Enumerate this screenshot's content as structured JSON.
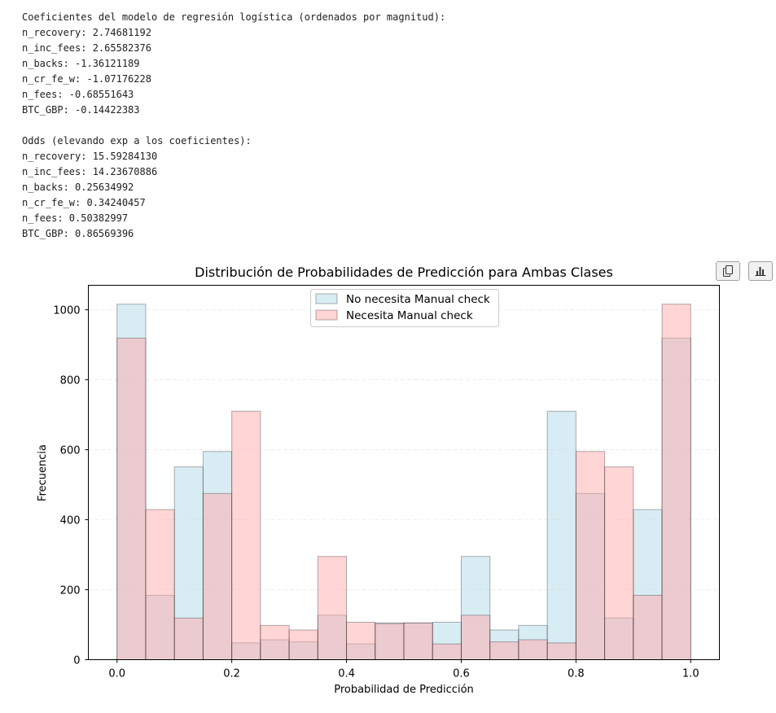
{
  "console": {
    "lines": [
      "Coeficientes del modelo de regresión logística (ordenados por magnitud):",
      "n_recovery: 2.74681192",
      "n_inc_fees: 2.65582376",
      "n_backs: -1.36121189",
      "n_cr_fe_w: -1.07176228",
      "n_fees: -0.68551643",
      "BTC_GBP: -0.14422383",
      "",
      "Odds (elevando exp a los coeficientes):",
      "n_recovery: 15.59284130",
      "n_inc_fees: 14.23670886",
      "n_backs: 0.25634992",
      "n_cr_fe_w: 0.34240457",
      "n_fees: 0.50382997",
      "BTC_GBP: 0.86569396"
    ]
  },
  "toolbar": {
    "copy_icon": "copy-icon",
    "chart_icon": "bar-chart-icon"
  },
  "chart_data": {
    "type": "bar",
    "title": "Distribución de Probabilidades de Predicción para Ambas Clases",
    "xlabel": "Probabilidad de Predicción",
    "ylabel": "Frecuencia",
    "xlim": [
      -0.05,
      1.05
    ],
    "ylim": [
      0,
      1070
    ],
    "xticks": [
      0.0,
      0.2,
      0.4,
      0.6,
      0.8,
      1.0
    ],
    "xtick_labels": [
      "0.0",
      "0.2",
      "0.4",
      "0.6",
      "0.8",
      "1.0"
    ],
    "yticks": [
      0,
      200,
      400,
      600,
      800,
      1000
    ],
    "ytick_labels": [
      "0",
      "200",
      "400",
      "600",
      "800",
      "1000"
    ],
    "grid": "y-dashed",
    "legend_position": "top-center",
    "bin_edges": [
      0.0,
      0.05,
      0.1,
      0.15,
      0.2,
      0.25,
      0.3,
      0.35,
      0.4,
      0.45,
      0.5,
      0.55,
      0.6,
      0.65,
      0.7,
      0.75,
      0.8,
      0.85,
      0.9,
      0.95,
      1.0
    ],
    "series": [
      {
        "name": "No necesita Manual check",
        "color": "#add8e6",
        "values": [
          1016,
          184,
          551,
          595,
          48,
          57,
          51,
          127,
          45,
          105,
          105,
          107,
          295,
          85,
          98,
          710,
          475,
          119,
          429,
          919
        ]
      },
      {
        "name": "Necesita Manual check",
        "color": "#ffa8a8",
        "values": [
          919,
          429,
          119,
          475,
          710,
          98,
          85,
          295,
          107,
          103,
          105,
          45,
          127,
          51,
          57,
          48,
          595,
          551,
          184,
          1016
        ]
      }
    ]
  }
}
